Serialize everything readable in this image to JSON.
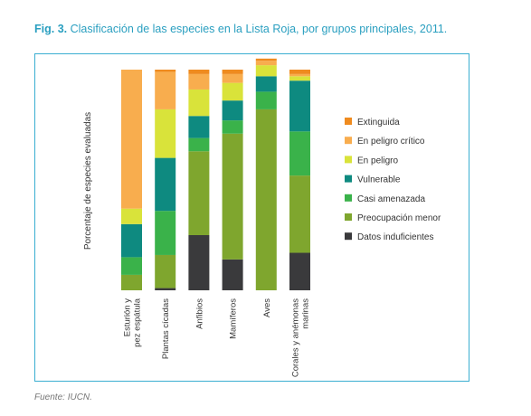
{
  "figure": {
    "number": "Fig. 3.",
    "title": "Clasificación de las especies en la Lista Roja, por grupos principales, 2011.",
    "source": "Fuente: IUCN."
  },
  "colors": {
    "title": "#2a9fc0",
    "frame": "#3aaed1",
    "Extinguida": "#ef8b1f",
    "En peligro crítico": "#f8ad4e",
    "En peligro": "#d9e33a",
    "Vulnerable": "#0e8a80",
    "Casi amenazada": "#3ab24a",
    "Preocupación menor": "#7fa62e",
    "Datos induficientes": "#3a3a3c"
  },
  "chart_data": {
    "type": "bar",
    "stacked": true,
    "title": "",
    "xlabel": "",
    "ylabel": "Porcentaje de especies evaluadas",
    "ylim": [
      0,
      100
    ],
    "grid": false,
    "legend_position": "right",
    "categories": [
      [
        "Esturión y",
        "pez espátula"
      ],
      [
        "Plantas cícadas"
      ],
      [
        "Anfibios"
      ],
      [
        "Mamíferos"
      ],
      [
        "Aves"
      ],
      [
        "Corales y anémonas",
        "marinas"
      ]
    ],
    "series": [
      {
        "name": "Datos induficientes",
        "values": [
          0,
          1,
          25,
          14,
          0,
          17
        ]
      },
      {
        "name": "Preocupación menor",
        "values": [
          7,
          15,
          38,
          57,
          82,
          35
        ]
      },
      {
        "name": "Casi amenazada",
        "values": [
          8,
          20,
          6,
          6,
          8,
          20
        ]
      },
      {
        "name": "Vulnerable",
        "values": [
          15,
          24,
          10,
          9,
          7,
          23
        ]
      },
      {
        "name": "En peligro",
        "values": [
          7,
          22,
          12,
          8,
          5,
          2
        ]
      },
      {
        "name": "En peligro crítico",
        "values": [
          63,
          17,
          7,
          4,
          2,
          1
        ]
      },
      {
        "name": "Extinguida",
        "values": [
          0,
          1,
          2,
          2,
          1,
          2
        ]
      }
    ],
    "legend_order": [
      "Extinguida",
      "En peligro crítico",
      "En peligro",
      "Vulnerable",
      "Casi amenazada",
      "Preocupación menor",
      "Datos induficientes"
    ]
  }
}
